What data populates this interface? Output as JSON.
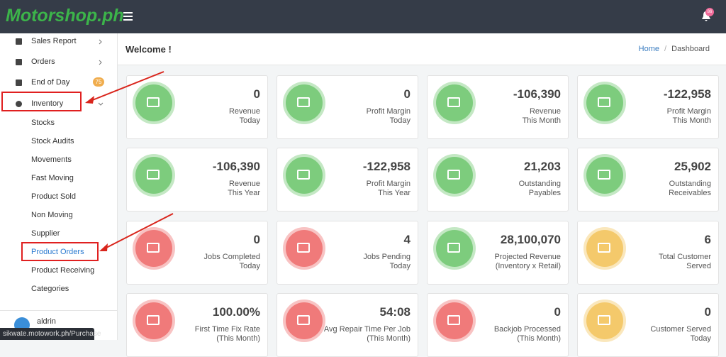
{
  "topbar": {
    "logo": "Motorshop.ph",
    "notification_count": "86"
  },
  "sidebar": {
    "items": [
      {
        "label": "Sales Report"
      },
      {
        "label": "Orders"
      },
      {
        "label": "End of Day",
        "badge": "75"
      },
      {
        "label": "Inventory"
      }
    ],
    "submenu": [
      "Stocks",
      "Stock Audits",
      "Movements",
      "Fast Moving",
      "Product Sold",
      "Non Moving",
      "Supplier",
      "Product Orders",
      "Product Receiving",
      "Categories"
    ],
    "user": "aldrin"
  },
  "status_bar": "sikwate.motowork.ph/Purchase",
  "header": {
    "title": "Welcome !",
    "breadcrumb": [
      "Home",
      "Dashboard"
    ],
    "breadcrumb_separator": "/"
  },
  "cards": [
    {
      "value": "0",
      "label": [
        "Revenue",
        "Today"
      ],
      "color": "#7dcc7d"
    },
    {
      "value": "0",
      "label": [
        "Profit Margin",
        "Today"
      ],
      "color": "#7dcc7d"
    },
    {
      "value": "-106,390",
      "label": [
        "Revenue",
        "This Month"
      ],
      "color": "#7dcc7d"
    },
    {
      "value": "-122,958",
      "label": [
        "Profit Margin",
        "This Month"
      ],
      "color": "#7dcc7d"
    },
    {
      "value": "-106,390",
      "label": [
        "Revenue",
        "This Year"
      ],
      "color": "#7dcc7d"
    },
    {
      "value": "-122,958",
      "label": [
        "Profit Margin",
        "This Year"
      ],
      "color": "#7dcc7d"
    },
    {
      "value": "21,203",
      "label": [
        "Outstanding",
        "Payables"
      ],
      "color": "#7dcc7d"
    },
    {
      "value": "25,902",
      "label": [
        "Outstanding",
        "Receivables"
      ],
      "color": "#7dcc7d"
    },
    {
      "value": "0",
      "label": [
        "Jobs Completed",
        "Today"
      ],
      "color": "#f07a7a"
    },
    {
      "value": "4",
      "label": [
        "Jobs Pending",
        "Today"
      ],
      "color": "#f07a7a"
    },
    {
      "value": "28,100,070",
      "label": [
        "Projected Revenue",
        "(Inventory x Retail)"
      ],
      "color": "#7dcc7d"
    },
    {
      "value": "6",
      "label": [
        "Total Customer",
        "Served"
      ],
      "color": "#f4c96b"
    },
    {
      "value": "100.00%",
      "label": [
        "First Time Fix Rate",
        "(This Month)"
      ],
      "color": "#f07a7a"
    },
    {
      "value": "54:08",
      "label": [
        "Avg Repair Time Per Job",
        "(This Month)"
      ],
      "color": "#f07a7a"
    },
    {
      "value": "0",
      "label": [
        "Backjob Processed",
        "(This Month)"
      ],
      "color": "#f07a7a"
    },
    {
      "value": "0",
      "label": [
        "Customer Served",
        "Today"
      ],
      "color": "#f4c96b"
    }
  ]
}
